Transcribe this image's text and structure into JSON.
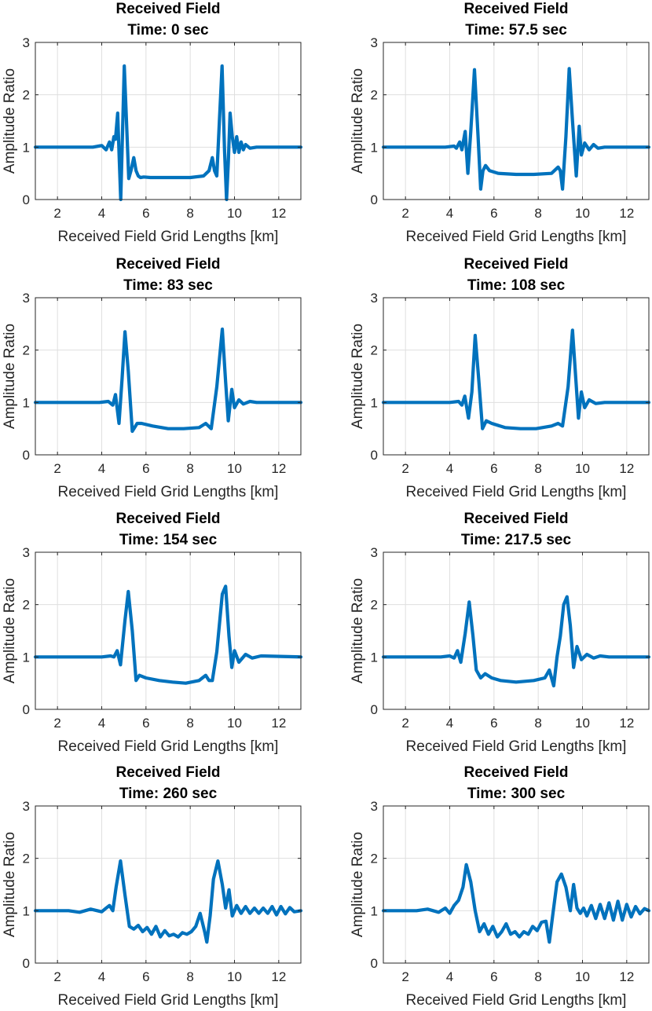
{
  "chart_data": [
    {
      "type": "line",
      "title": "Received Field",
      "subtitle": "Time: 0 sec",
      "xlabel": "Received Field Grid Lengths [km]",
      "ylabel": "Amplitude Ratio",
      "xlim": [
        1,
        13
      ],
      "ylim": [
        0,
        3
      ],
      "xticks": [
        2,
        4,
        6,
        8,
        10,
        12
      ],
      "yticks": [
        0,
        1,
        2,
        3
      ],
      "grid": true,
      "color": "#0072BD",
      "series": [
        {
          "name": "Received Field",
          "x": [
            1.0,
            3.6,
            4.0,
            4.2,
            4.35,
            4.45,
            4.55,
            4.62,
            4.72,
            4.8,
            4.86,
            4.92,
            5.02,
            5.12,
            5.22,
            5.32,
            5.45,
            5.55,
            5.65,
            5.75,
            5.9,
            6.2,
            6.8,
            7.4,
            8.0,
            8.6,
            8.85,
            9.0,
            9.1,
            9.2,
            9.32,
            9.44,
            9.55,
            9.64,
            9.72,
            9.8,
            9.9,
            10.0,
            10.1,
            10.2,
            10.3,
            10.4,
            10.5,
            10.7,
            11.0,
            13.0
          ],
          "y": [
            1.0,
            1.0,
            1.03,
            0.95,
            1.1,
            0.95,
            1.2,
            1.15,
            1.65,
            0.7,
            0.0,
            0.95,
            2.55,
            1.5,
            0.4,
            0.55,
            0.8,
            0.55,
            0.45,
            0.42,
            0.43,
            0.42,
            0.42,
            0.42,
            0.42,
            0.45,
            0.55,
            0.8,
            0.55,
            0.45,
            1.5,
            2.55,
            0.95,
            0.0,
            0.7,
            1.65,
            1.2,
            0.9,
            1.2,
            0.9,
            1.1,
            0.95,
            1.05,
            0.98,
            1.0,
            1.0
          ]
        }
      ]
    },
    {
      "type": "line",
      "title": "Received Field",
      "subtitle": "Time: 57.5 sec",
      "xlabel": "Received Field Grid Lengths [km]",
      "ylabel": "Amplitude Ratio",
      "xlim": [
        1,
        13
      ],
      "ylim": [
        0,
        3
      ],
      "xticks": [
        2,
        4,
        6,
        8,
        10,
        12
      ],
      "yticks": [
        0,
        1,
        2,
        3
      ],
      "grid": true,
      "color": "#0072BD",
      "series": [
        {
          "name": "Received Field",
          "x": [
            1.0,
            3.8,
            4.2,
            4.3,
            4.45,
            4.55,
            4.7,
            4.82,
            4.95,
            5.12,
            5.28,
            5.4,
            5.5,
            5.62,
            5.8,
            6.2,
            7.0,
            7.8,
            8.6,
            8.9,
            9.0,
            9.1,
            9.25,
            9.4,
            9.55,
            9.72,
            9.85,
            9.95,
            10.1,
            10.3,
            10.5,
            10.7,
            11.0,
            13.0
          ],
          "y": [
            1.0,
            1.0,
            1.02,
            0.98,
            1.1,
            0.95,
            1.3,
            0.5,
            1.3,
            2.48,
            1.2,
            0.2,
            0.55,
            0.65,
            0.55,
            0.5,
            0.48,
            0.48,
            0.5,
            0.62,
            0.55,
            0.2,
            1.2,
            2.5,
            1.5,
            0.45,
            1.4,
            0.85,
            1.08,
            0.95,
            1.05,
            0.98,
            1.0,
            1.0
          ]
        }
      ]
    },
    {
      "type": "line",
      "title": "Received Field",
      "subtitle": "Time: 83 sec",
      "xlabel": "Received Field Grid Lengths [km]",
      "ylabel": "Amplitude Ratio",
      "xlim": [
        1,
        13
      ],
      "ylim": [
        0,
        3
      ],
      "xticks": [
        2,
        4,
        6,
        8,
        10,
        12
      ],
      "yticks": [
        0,
        1,
        2,
        3
      ],
      "grid": true,
      "color": "#0072BD",
      "series": [
        {
          "name": "Received Field",
          "x": [
            1.0,
            3.9,
            4.3,
            4.5,
            4.62,
            4.78,
            4.92,
            5.05,
            5.2,
            5.38,
            5.6,
            5.8,
            6.3,
            7.0,
            7.7,
            8.4,
            8.7,
            8.95,
            9.2,
            9.45,
            9.6,
            9.72,
            9.88,
            10.0,
            10.2,
            10.4,
            10.7,
            11.0,
            13.0
          ],
          "y": [
            1.0,
            1.0,
            1.02,
            0.95,
            1.15,
            0.6,
            1.45,
            2.35,
            1.6,
            0.45,
            0.6,
            0.6,
            0.55,
            0.5,
            0.5,
            0.52,
            0.6,
            0.5,
            1.3,
            2.4,
            1.4,
            0.65,
            1.25,
            0.9,
            1.05,
            0.97,
            1.02,
            1.0,
            1.0
          ]
        }
      ]
    },
    {
      "type": "line",
      "title": "Received Field",
      "subtitle": "Time: 108 sec",
      "xlabel": "Received Field Grid Lengths [km]",
      "ylabel": "Amplitude Ratio",
      "xlim": [
        1,
        13
      ],
      "ylim": [
        0,
        3
      ],
      "xticks": [
        2,
        4,
        6,
        8,
        10,
        12
      ],
      "yticks": [
        0,
        1,
        2,
        3
      ],
      "grid": true,
      "color": "#0072BD",
      "series": [
        {
          "name": "Received Field",
          "x": [
            1.0,
            4.0,
            4.4,
            4.55,
            4.68,
            4.85,
            5.0,
            5.15,
            5.3,
            5.48,
            5.65,
            5.9,
            6.5,
            7.2,
            7.9,
            8.6,
            8.9,
            9.1,
            9.35,
            9.55,
            9.7,
            9.82,
            9.95,
            10.1,
            10.3,
            10.6,
            11.0,
            13.0
          ],
          "y": [
            1.0,
            1.0,
            1.02,
            0.95,
            1.12,
            0.7,
            1.2,
            2.28,
            1.5,
            0.5,
            0.65,
            0.6,
            0.52,
            0.5,
            0.5,
            0.55,
            0.6,
            0.55,
            1.3,
            2.38,
            1.45,
            0.7,
            1.2,
            0.9,
            1.05,
            0.98,
            1.0,
            1.0
          ]
        }
      ]
    },
    {
      "type": "line",
      "title": "Received Field",
      "subtitle": "Time: 154 sec",
      "xlabel": "Received Field Grid Lengths [km]",
      "ylabel": "Amplitude Ratio",
      "xlim": [
        1,
        13
      ],
      "ylim": [
        0,
        3
      ],
      "xticks": [
        2,
        4,
        6,
        8,
        10,
        12
      ],
      "yticks": [
        0,
        1,
        2,
        3
      ],
      "grid": true,
      "color": "#0072BD",
      "series": [
        {
          "name": "Received Field",
          "x": [
            1.0,
            4.0,
            4.4,
            4.55,
            4.7,
            4.85,
            5.05,
            5.2,
            5.38,
            5.55,
            5.7,
            6.0,
            6.6,
            7.2,
            7.8,
            8.4,
            8.7,
            8.85,
            9.0,
            9.2,
            9.45,
            9.6,
            9.75,
            9.88,
            10.0,
            10.2,
            10.5,
            10.8,
            11.2,
            13.0
          ],
          "y": [
            1.0,
            1.0,
            1.02,
            1.0,
            1.12,
            0.85,
            1.7,
            2.25,
            1.5,
            0.55,
            0.65,
            0.6,
            0.55,
            0.52,
            0.5,
            0.55,
            0.65,
            0.55,
            0.55,
            1.1,
            2.2,
            2.35,
            1.4,
            0.8,
            1.12,
            0.9,
            1.05,
            0.98,
            1.02,
            1.0
          ]
        }
      ]
    },
    {
      "type": "line",
      "title": "Received Field",
      "subtitle": "Time: 217.5 sec",
      "xlabel": "Received Field Grid Lengths [km]",
      "ylabel": "Amplitude Ratio",
      "xlim": [
        1,
        13
      ],
      "ylim": [
        0,
        3
      ],
      "xticks": [
        2,
        4,
        6,
        8,
        10,
        12
      ],
      "yticks": [
        0,
        1,
        2,
        3
      ],
      "grid": true,
      "color": "#0072BD",
      "series": [
        {
          "name": "Received Field",
          "x": [
            1.0,
            3.6,
            4.0,
            4.2,
            4.35,
            4.5,
            4.7,
            4.88,
            5.05,
            5.2,
            5.4,
            5.6,
            5.9,
            6.3,
            7.0,
            7.8,
            8.3,
            8.5,
            8.7,
            8.85,
            9.0,
            9.15,
            9.3,
            9.45,
            9.6,
            9.75,
            9.95,
            10.2,
            10.5,
            10.8,
            11.2,
            13.0
          ],
          "y": [
            1.0,
            1.0,
            1.02,
            0.98,
            1.12,
            0.9,
            1.45,
            2.05,
            1.4,
            0.75,
            0.6,
            0.68,
            0.6,
            0.55,
            0.52,
            0.55,
            0.6,
            0.75,
            0.45,
            1.0,
            1.4,
            2.0,
            2.15,
            1.6,
            0.8,
            1.2,
            0.95,
            1.05,
            0.98,
            1.02,
            1.0,
            1.0
          ]
        }
      ]
    },
    {
      "type": "line",
      "title": "Received Field",
      "subtitle": "Time: 260 sec",
      "xlabel": "Received Field Grid Lengths [km]",
      "ylabel": "Amplitude Ratio",
      "xlim": [
        1,
        13
      ],
      "ylim": [
        0,
        3
      ],
      "xticks": [
        2,
        4,
        6,
        8,
        10,
        12
      ],
      "yticks": [
        0,
        1,
        2,
        3
      ],
      "grid": true,
      "color": "#0072BD",
      "series": [
        {
          "name": "Received Field",
          "x": [
            1.0,
            2.5,
            3.0,
            3.5,
            4.0,
            4.2,
            4.35,
            4.5,
            4.65,
            4.85,
            5.05,
            5.25,
            5.45,
            5.65,
            5.85,
            6.05,
            6.25,
            6.45,
            6.65,
            6.85,
            7.05,
            7.25,
            7.45,
            7.65,
            7.85,
            8.05,
            8.25,
            8.45,
            8.65,
            8.75,
            8.9,
            9.05,
            9.25,
            9.45,
            9.6,
            9.75,
            9.9,
            10.1,
            10.3,
            10.5,
            10.7,
            10.9,
            11.1,
            11.3,
            11.5,
            11.7,
            11.9,
            12.1,
            12.3,
            12.5,
            12.7,
            13.0
          ],
          "y": [
            1.0,
            1.0,
            0.97,
            1.03,
            0.98,
            1.05,
            1.1,
            1.0,
            1.45,
            1.95,
            1.3,
            0.7,
            0.65,
            0.72,
            0.6,
            0.68,
            0.55,
            0.7,
            0.5,
            0.62,
            0.52,
            0.55,
            0.5,
            0.58,
            0.55,
            0.6,
            0.7,
            0.95,
            0.6,
            0.4,
            0.9,
            1.6,
            1.95,
            1.5,
            1.05,
            1.4,
            0.9,
            1.1,
            0.95,
            1.08,
            0.95,
            1.05,
            0.95,
            1.05,
            0.95,
            1.08,
            0.92,
            1.08,
            0.94,
            1.06,
            0.98,
            1.0
          ]
        }
      ]
    },
    {
      "type": "line",
      "title": "Received Field",
      "subtitle": "Time: 300 sec",
      "xlabel": "Received Field Grid Lengths [km]",
      "ylabel": "Amplitude Ratio",
      "xlim": [
        1,
        13
      ],
      "ylim": [
        0,
        3
      ],
      "xticks": [
        2,
        4,
        6,
        8,
        10,
        12
      ],
      "yticks": [
        0,
        1,
        2,
        3
      ],
      "grid": true,
      "color": "#0072BD",
      "series": [
        {
          "name": "Received Field",
          "x": [
            1.0,
            2.5,
            3.0,
            3.5,
            3.8,
            4.0,
            4.2,
            4.4,
            4.6,
            4.75,
            4.95,
            5.15,
            5.35,
            5.55,
            5.75,
            5.95,
            6.15,
            6.35,
            6.55,
            6.75,
            6.95,
            7.15,
            7.35,
            7.55,
            7.75,
            7.95,
            8.15,
            8.35,
            8.5,
            8.65,
            8.85,
            9.05,
            9.25,
            9.45,
            9.6,
            9.75,
            9.9,
            10.05,
            10.2,
            10.4,
            10.6,
            10.8,
            11.0,
            11.2,
            11.4,
            11.6,
            11.8,
            12.0,
            12.2,
            12.4,
            12.6,
            12.8,
            13.0
          ],
          "y": [
            1.0,
            1.0,
            1.03,
            0.97,
            1.05,
            0.95,
            1.1,
            1.2,
            1.45,
            1.88,
            1.55,
            1.0,
            0.6,
            0.75,
            0.55,
            0.7,
            0.5,
            0.6,
            0.75,
            0.55,
            0.6,
            0.5,
            0.6,
            0.55,
            0.7,
            0.62,
            0.78,
            0.8,
            0.4,
            0.9,
            1.55,
            1.7,
            1.45,
            1.0,
            1.5,
            1.05,
            0.95,
            1.05,
            0.9,
            1.1,
            0.85,
            1.12,
            0.85,
            1.15,
            0.82,
            1.18,
            0.82,
            1.12,
            0.88,
            1.08,
            0.94,
            1.04,
            1.0
          ]
        }
      ]
    }
  ]
}
